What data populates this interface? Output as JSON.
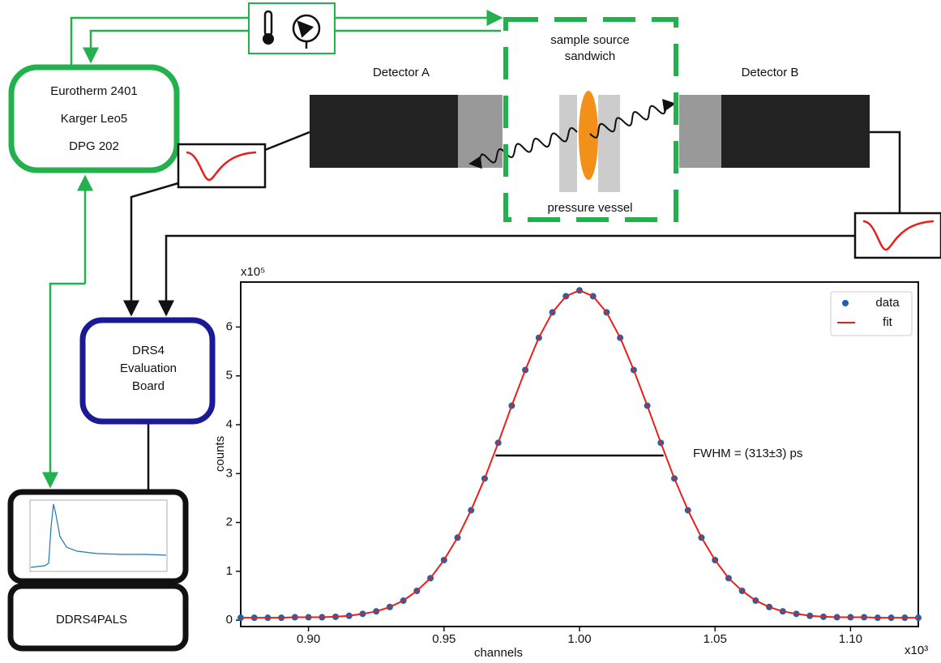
{
  "diagram": {
    "controller": [
      "Eurotherm 2401",
      "Karger Leo5",
      "DPG 202"
    ],
    "detector_a": "Detector A",
    "detector_b": "Detector B",
    "sample": [
      "sample source",
      "sandwich"
    ],
    "vessel": "pressure vessel",
    "digitizer": [
      "DRS4",
      "Evaluation",
      "Board"
    ],
    "software": "DDRS4PALS"
  },
  "chart_data": {
    "type": "scatter",
    "x_label": "channels",
    "y_label": "counts",
    "x_multiplier": "x10³",
    "y_multiplier": "x10⁵",
    "x": [
      0.875,
      0.88,
      0.885,
      0.89,
      0.895,
      0.9,
      0.905,
      0.91,
      0.915,
      0.92,
      0.925,
      0.93,
      0.935,
      0.94,
      0.945,
      0.95,
      0.955,
      0.96,
      0.965,
      0.97,
      0.975,
      0.98,
      0.985,
      0.99,
      0.995,
      1.0,
      1.005,
      1.01,
      1.015,
      1.02,
      1.025,
      1.03,
      1.035,
      1.04,
      1.045,
      1.05,
      1.055,
      1.06,
      1.065,
      1.07,
      1.075,
      1.08,
      1.085,
      1.09,
      1.095,
      1.1,
      1.105,
      1.11,
      1.115,
      1.12,
      1.125
    ],
    "series": [
      {
        "name": "data",
        "color": "#1764b0",
        "values": [
          0.05,
          0.05,
          0.05,
          0.05,
          0.06,
          0.06,
          0.06,
          0.07,
          0.09,
          0.13,
          0.18,
          0.27,
          0.4,
          0.6,
          0.86,
          1.23,
          1.69,
          2.25,
          2.9,
          3.63,
          4.39,
          5.12,
          5.78,
          6.3,
          6.63,
          6.75,
          6.63,
          6.3,
          5.78,
          5.12,
          4.39,
          3.63,
          2.9,
          2.25,
          1.69,
          1.23,
          0.86,
          0.6,
          0.4,
          0.27,
          0.18,
          0.13,
          0.09,
          0.07,
          0.06,
          0.06,
          0.06,
          0.05,
          0.05,
          0.05,
          0.05
        ]
      },
      {
        "name": "fit",
        "color": "#e8201c",
        "values": [
          0.05,
          0.05,
          0.05,
          0.05,
          0.06,
          0.06,
          0.06,
          0.07,
          0.09,
          0.13,
          0.18,
          0.27,
          0.4,
          0.6,
          0.86,
          1.23,
          1.69,
          2.25,
          2.9,
          3.63,
          4.39,
          5.12,
          5.78,
          6.3,
          6.63,
          6.75,
          6.63,
          6.3,
          5.78,
          5.12,
          4.39,
          3.63,
          2.9,
          2.25,
          1.69,
          1.23,
          0.86,
          0.6,
          0.4,
          0.27,
          0.18,
          0.13,
          0.09,
          0.07,
          0.06,
          0.06,
          0.06,
          0.05,
          0.05,
          0.05,
          0.05
        ]
      }
    ],
    "xlim": [
      0.875,
      1.125
    ],
    "ylim": [
      -0.13,
      6.92
    ],
    "xticks": [
      {
        "value": 0.9,
        "label": "0.90"
      },
      0.95,
      {
        "value": 1.0,
        "label": "1.00"
      },
      1.05,
      {
        "value": 1.1,
        "label": "1.10"
      }
    ],
    "yticks": [
      0,
      1,
      2,
      3,
      4,
      5,
      6
    ],
    "legend": "upper right",
    "fwhm": {
      "label": "FWHM = (313±3) ps",
      "x": [
        0.969,
        1.031
      ],
      "y": 3.37
    }
  }
}
